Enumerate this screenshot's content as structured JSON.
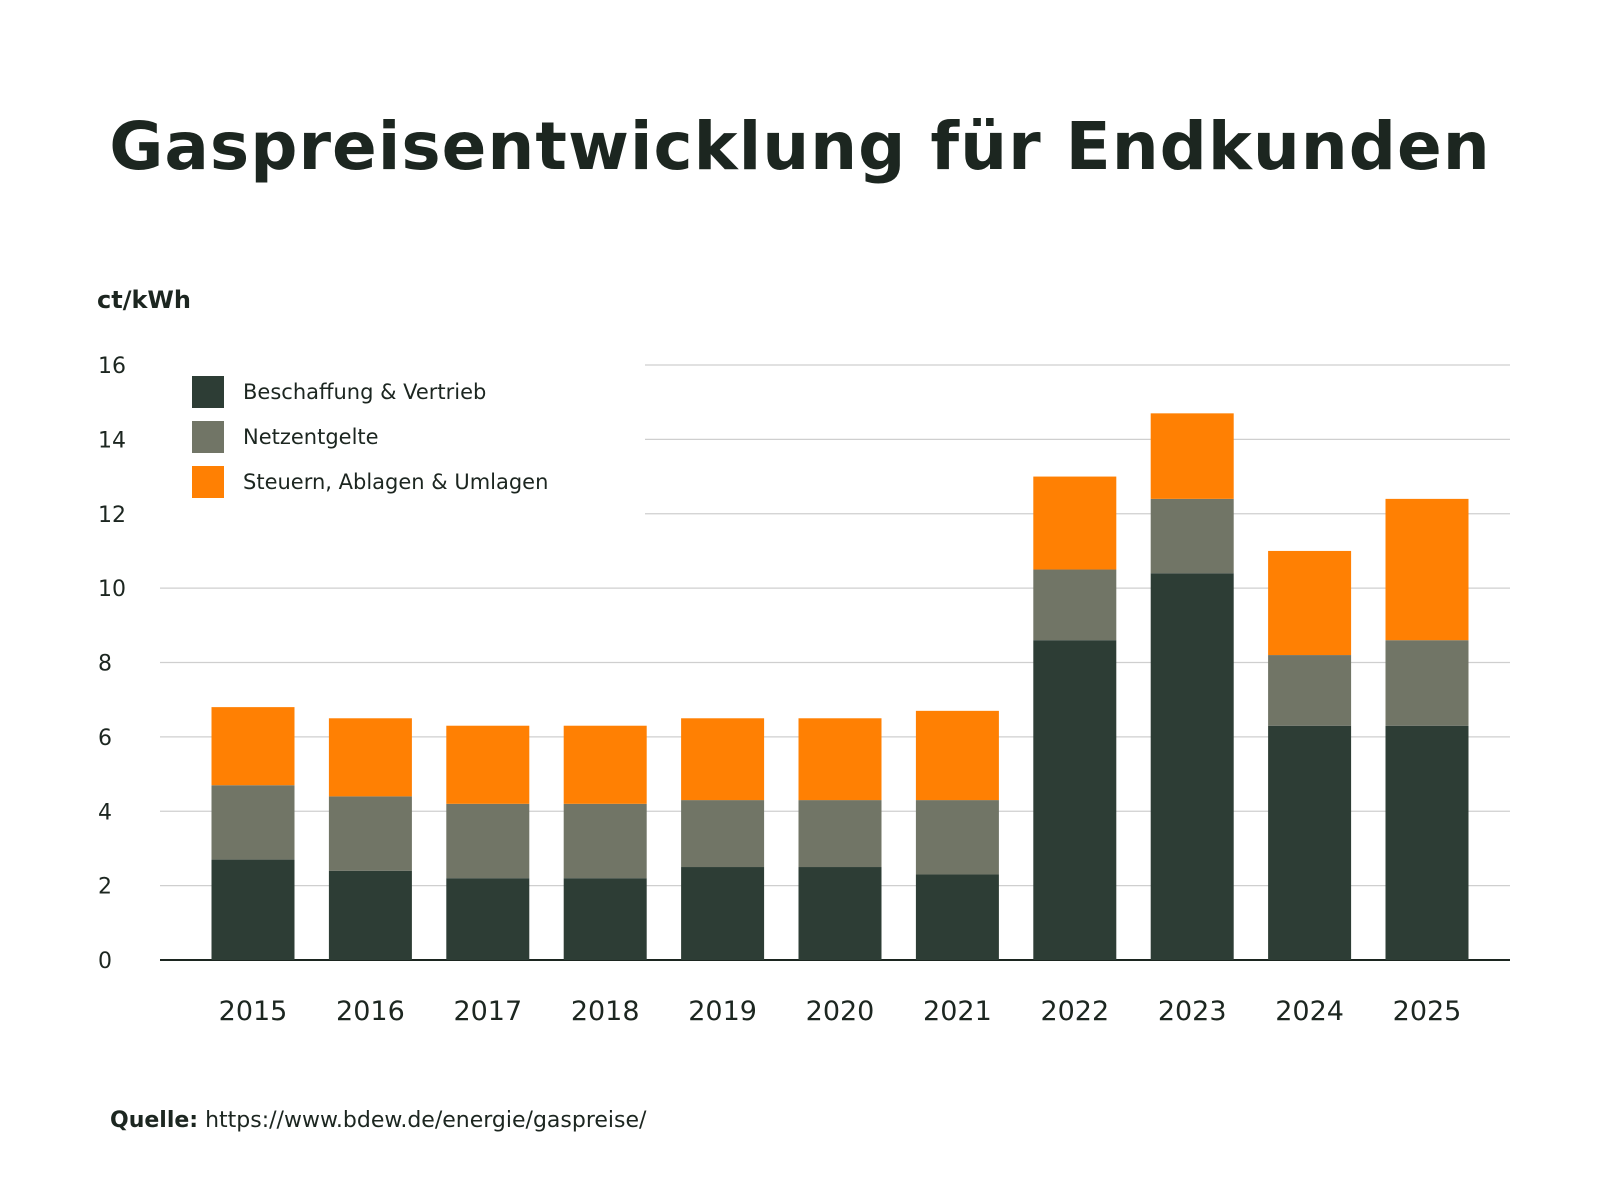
{
  "chart_data": {
    "type": "bar",
    "stacked": true,
    "title": "Gaspreisentwicklung für Endkunden",
    "ylabel": "ct/kWh",
    "xlabel": "",
    "ylim": [
      0,
      16
    ],
    "yticks": [
      0,
      2,
      4,
      6,
      8,
      10,
      12,
      14,
      16
    ],
    "grid": true,
    "legend_position": "top-left",
    "categories": [
      "2015",
      "2016",
      "2017",
      "2018",
      "2019",
      "2020",
      "2021",
      "2022",
      "2023",
      "2024",
      "2025"
    ],
    "series": [
      {
        "name": "Beschaffung & Vertrieb",
        "color": "#2d3d35",
        "values": [
          2.7,
          2.4,
          2.2,
          2.2,
          2.5,
          2.5,
          2.3,
          8.6,
          10.4,
          6.3,
          6.3
        ]
      },
      {
        "name": "Netzentgelte",
        "color": "#717566",
        "values": [
          2.0,
          2.0,
          2.0,
          2.0,
          1.8,
          1.8,
          2.0,
          1.9,
          2.0,
          1.9,
          2.3
        ]
      },
      {
        "name": "Steuern, Ablagen & Umlagen",
        "color": "#ff8003",
        "values": [
          2.1,
          2.1,
          2.1,
          2.1,
          2.2,
          2.2,
          2.4,
          2.5,
          2.3,
          2.8,
          3.8
        ]
      }
    ]
  },
  "source": {
    "label": "Quelle:",
    "url": "https://www.bdew.de/energie/gaspreise/"
  }
}
